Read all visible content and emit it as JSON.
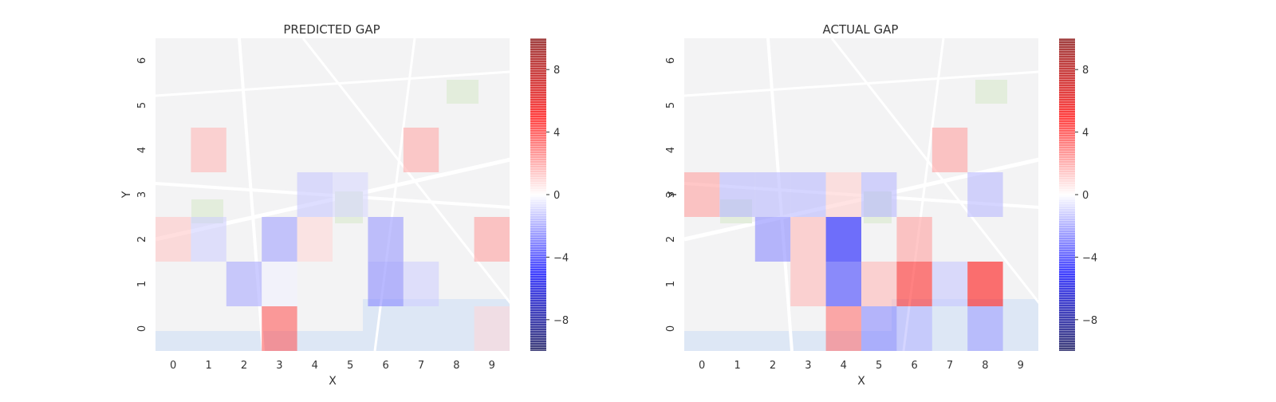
{
  "chart_data": [
    {
      "type": "heatmap",
      "title": "PREDICTED GAP",
      "xlabel": "X",
      "ylabel": "Y",
      "x_ticks": [
        "0",
        "1",
        "2",
        "3",
        "4",
        "5",
        "6",
        "7",
        "8",
        "9"
      ],
      "y_ticks": [
        "0",
        "1",
        "2",
        "3",
        "4",
        "5",
        "6"
      ],
      "grid": false,
      "background": "map",
      "colormap": "seismic",
      "vmin": -10,
      "vmax": 10,
      "colorbar_ticks": [
        8,
        4,
        0,
        -4,
        -8
      ],
      "colorbar_labels": [
        "8",
        "4",
        "0",
        "−4",
        "−8"
      ],
      "cells": [
        {
          "x": 3,
          "y": 0,
          "value": 3.5
        },
        {
          "x": 9,
          "y": 0,
          "value": 0.8
        },
        {
          "x": 2,
          "y": 1,
          "value": -1.8
        },
        {
          "x": 3,
          "y": 1,
          "value": -0.3
        },
        {
          "x": 6,
          "y": 1,
          "value": -2.5
        },
        {
          "x": 7,
          "y": 1,
          "value": -1.0
        },
        {
          "x": 0,
          "y": 2,
          "value": 1.2
        },
        {
          "x": 1,
          "y": 2,
          "value": -1.0
        },
        {
          "x": 3,
          "y": 2,
          "value": -2.0
        },
        {
          "x": 4,
          "y": 2,
          "value": 0.8
        },
        {
          "x": 6,
          "y": 2,
          "value": -2.2
        },
        {
          "x": 9,
          "y": 2,
          "value": 2.0
        },
        {
          "x": 4,
          "y": 3,
          "value": -1.2
        },
        {
          "x": 5,
          "y": 3,
          "value": -0.8
        },
        {
          "x": 1,
          "y": 4,
          "value": 1.5
        },
        {
          "x": 7,
          "y": 4,
          "value": 1.8
        }
      ]
    },
    {
      "type": "heatmap",
      "title": "ACTUAL GAP",
      "xlabel": "X",
      "ylabel": "Y",
      "x_ticks": [
        "0",
        "1",
        "2",
        "3",
        "4",
        "5",
        "6",
        "7",
        "8",
        "9"
      ],
      "y_ticks": [
        "0",
        "1",
        "2",
        "3",
        "4",
        "5",
        "6"
      ],
      "grid": false,
      "background": "map",
      "colormap": "seismic",
      "vmin": -10,
      "vmax": 10,
      "colorbar_ticks": [
        8,
        4,
        0,
        -4,
        -8
      ],
      "colorbar_labels": [
        "8",
        "4",
        "0",
        "−4",
        "−8"
      ],
      "cells": [
        {
          "x": 4,
          "y": 0,
          "value": 3.0
        },
        {
          "x": 5,
          "y": 0,
          "value": -2.5
        },
        {
          "x": 6,
          "y": 0,
          "value": -1.5
        },
        {
          "x": 8,
          "y": 0,
          "value": -2.0
        },
        {
          "x": 3,
          "y": 1,
          "value": 1.5
        },
        {
          "x": 4,
          "y": 1,
          "value": -4.0
        },
        {
          "x": 5,
          "y": 1,
          "value": 1.5
        },
        {
          "x": 6,
          "y": 1,
          "value": 4.5
        },
        {
          "x": 7,
          "y": 1,
          "value": -1.2
        },
        {
          "x": 8,
          "y": 1,
          "value": 5.0
        },
        {
          "x": 2,
          "y": 2,
          "value": -2.5
        },
        {
          "x": 3,
          "y": 2,
          "value": 1.5
        },
        {
          "x": 4,
          "y": 2,
          "value": -5.0
        },
        {
          "x": 6,
          "y": 2,
          "value": 2.0
        },
        {
          "x": 0,
          "y": 3,
          "value": 2.0
        },
        {
          "x": 1,
          "y": 3,
          "value": -1.5
        },
        {
          "x": 2,
          "y": 3,
          "value": -1.5
        },
        {
          "x": 3,
          "y": 3,
          "value": -1.5
        },
        {
          "x": 4,
          "y": 3,
          "value": 1.0
        },
        {
          "x": 5,
          "y": 3,
          "value": -1.5
        },
        {
          "x": 8,
          "y": 3,
          "value": -1.5
        },
        {
          "x": 7,
          "y": 4,
          "value": 2.0
        }
      ]
    }
  ]
}
